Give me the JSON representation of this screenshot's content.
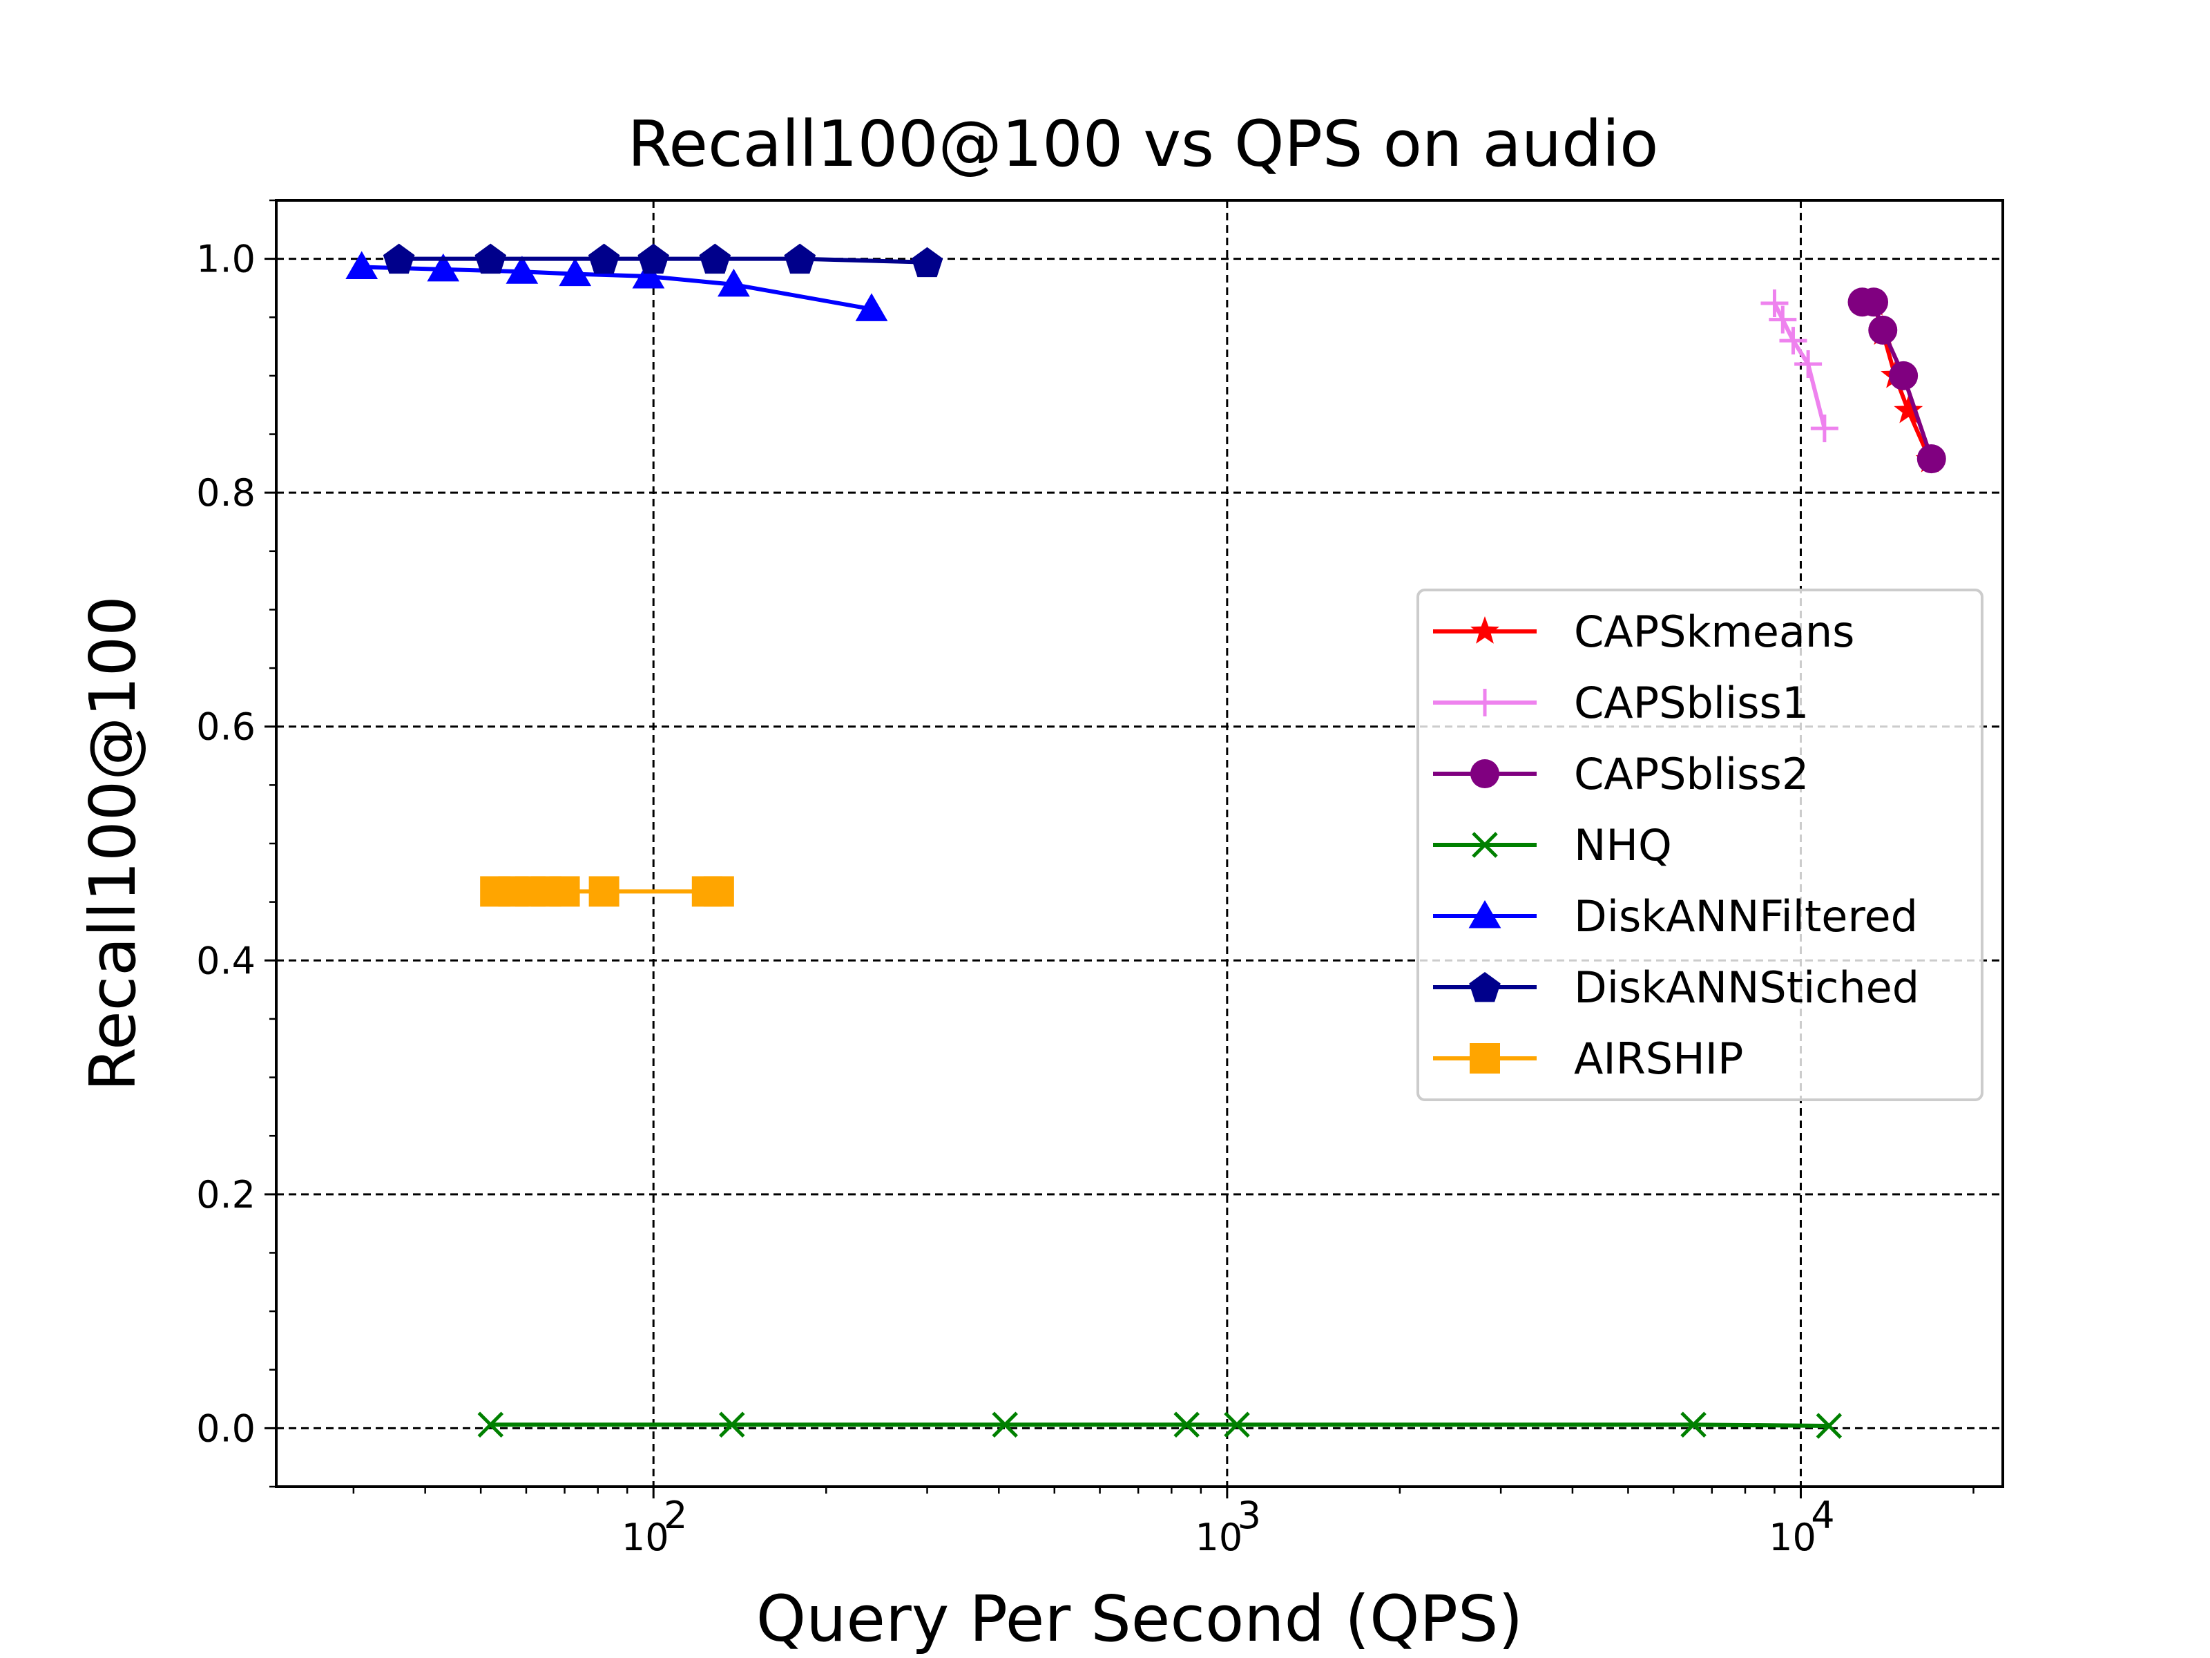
{
  "chart_data": {
    "type": "line",
    "title": "Recall100@100 vs QPS on audio",
    "xlabel": "Query Per Second (QPS)",
    "ylabel": "Recall100@100",
    "xscale": "log",
    "xlim": [
      22,
      22500
    ],
    "ylim": [
      -0.05,
      1.05
    ],
    "x_ticks": [
      {
        "value": 100,
        "base": "10",
        "exp": "2"
      },
      {
        "value": 1000,
        "base": "10",
        "exp": "3"
      },
      {
        "value": 10000,
        "base": "10",
        "exp": "4"
      }
    ],
    "y_ticks": [
      {
        "value": 0.0,
        "label": "0.0"
      },
      {
        "value": 0.2,
        "label": "0.2"
      },
      {
        "value": 0.4,
        "label": "0.4"
      },
      {
        "value": 0.6,
        "label": "0.6"
      },
      {
        "value": 0.8,
        "label": "0.8"
      },
      {
        "value": 1.0,
        "label": "1.0"
      }
    ],
    "grid": true,
    "legend_position": "center-right",
    "series": [
      {
        "name": "CAPSkmeans",
        "color": "#ff0000",
        "marker": "star",
        "x": [
          13400,
          13900,
          14600,
          15400,
          16800
        ],
        "y": [
          0.962,
          0.937,
          0.9,
          0.87,
          0.828
        ]
      },
      {
        "name": "CAPSbliss1",
        "color": "#ee82ee",
        "marker": "plus",
        "x": [
          9000,
          9300,
          9700,
          10300,
          11000
        ],
        "y": [
          0.962,
          0.948,
          0.93,
          0.91,
          0.855
        ]
      },
      {
        "name": "CAPSbliss2",
        "color": "#800080",
        "marker": "circle",
        "x": [
          12800,
          13400,
          13900,
          15100,
          16900
        ],
        "y": [
          0.963,
          0.963,
          0.939,
          0.9,
          0.829
        ]
      },
      {
        "name": "NHQ",
        "color": "#008000",
        "marker": "x",
        "x": [
          52,
          137,
          410,
          850,
          1040,
          6500,
          11200
        ],
        "y": [
          0.003,
          0.003,
          0.003,
          0.003,
          0.003,
          0.003,
          0.002
        ]
      },
      {
        "name": "DiskANNFiltered",
        "color": "#0000ff",
        "marker": "triangle",
        "x": [
          31,
          43,
          59,
          73,
          98,
          138,
          240
        ],
        "y": [
          0.993,
          0.991,
          0.989,
          0.987,
          0.985,
          0.978,
          0.957
        ]
      },
      {
        "name": "DiskANNStiched",
        "color": "#00008b",
        "marker": "pentagon",
        "x": [
          36,
          52,
          82,
          100,
          128,
          180,
          300
        ],
        "y": [
          1.0,
          1.0,
          1.0,
          1.0,
          1.0,
          1.0,
          0.997
        ]
      },
      {
        "name": "AIRSHIP",
        "color": "#ffa500",
        "marker": "square",
        "x": [
          53,
          57,
          61,
          65,
          70,
          82,
          124,
          130
        ],
        "y": [
          0.459,
          0.459,
          0.459,
          0.459,
          0.459,
          0.459,
          0.459,
          0.459
        ]
      }
    ]
  }
}
